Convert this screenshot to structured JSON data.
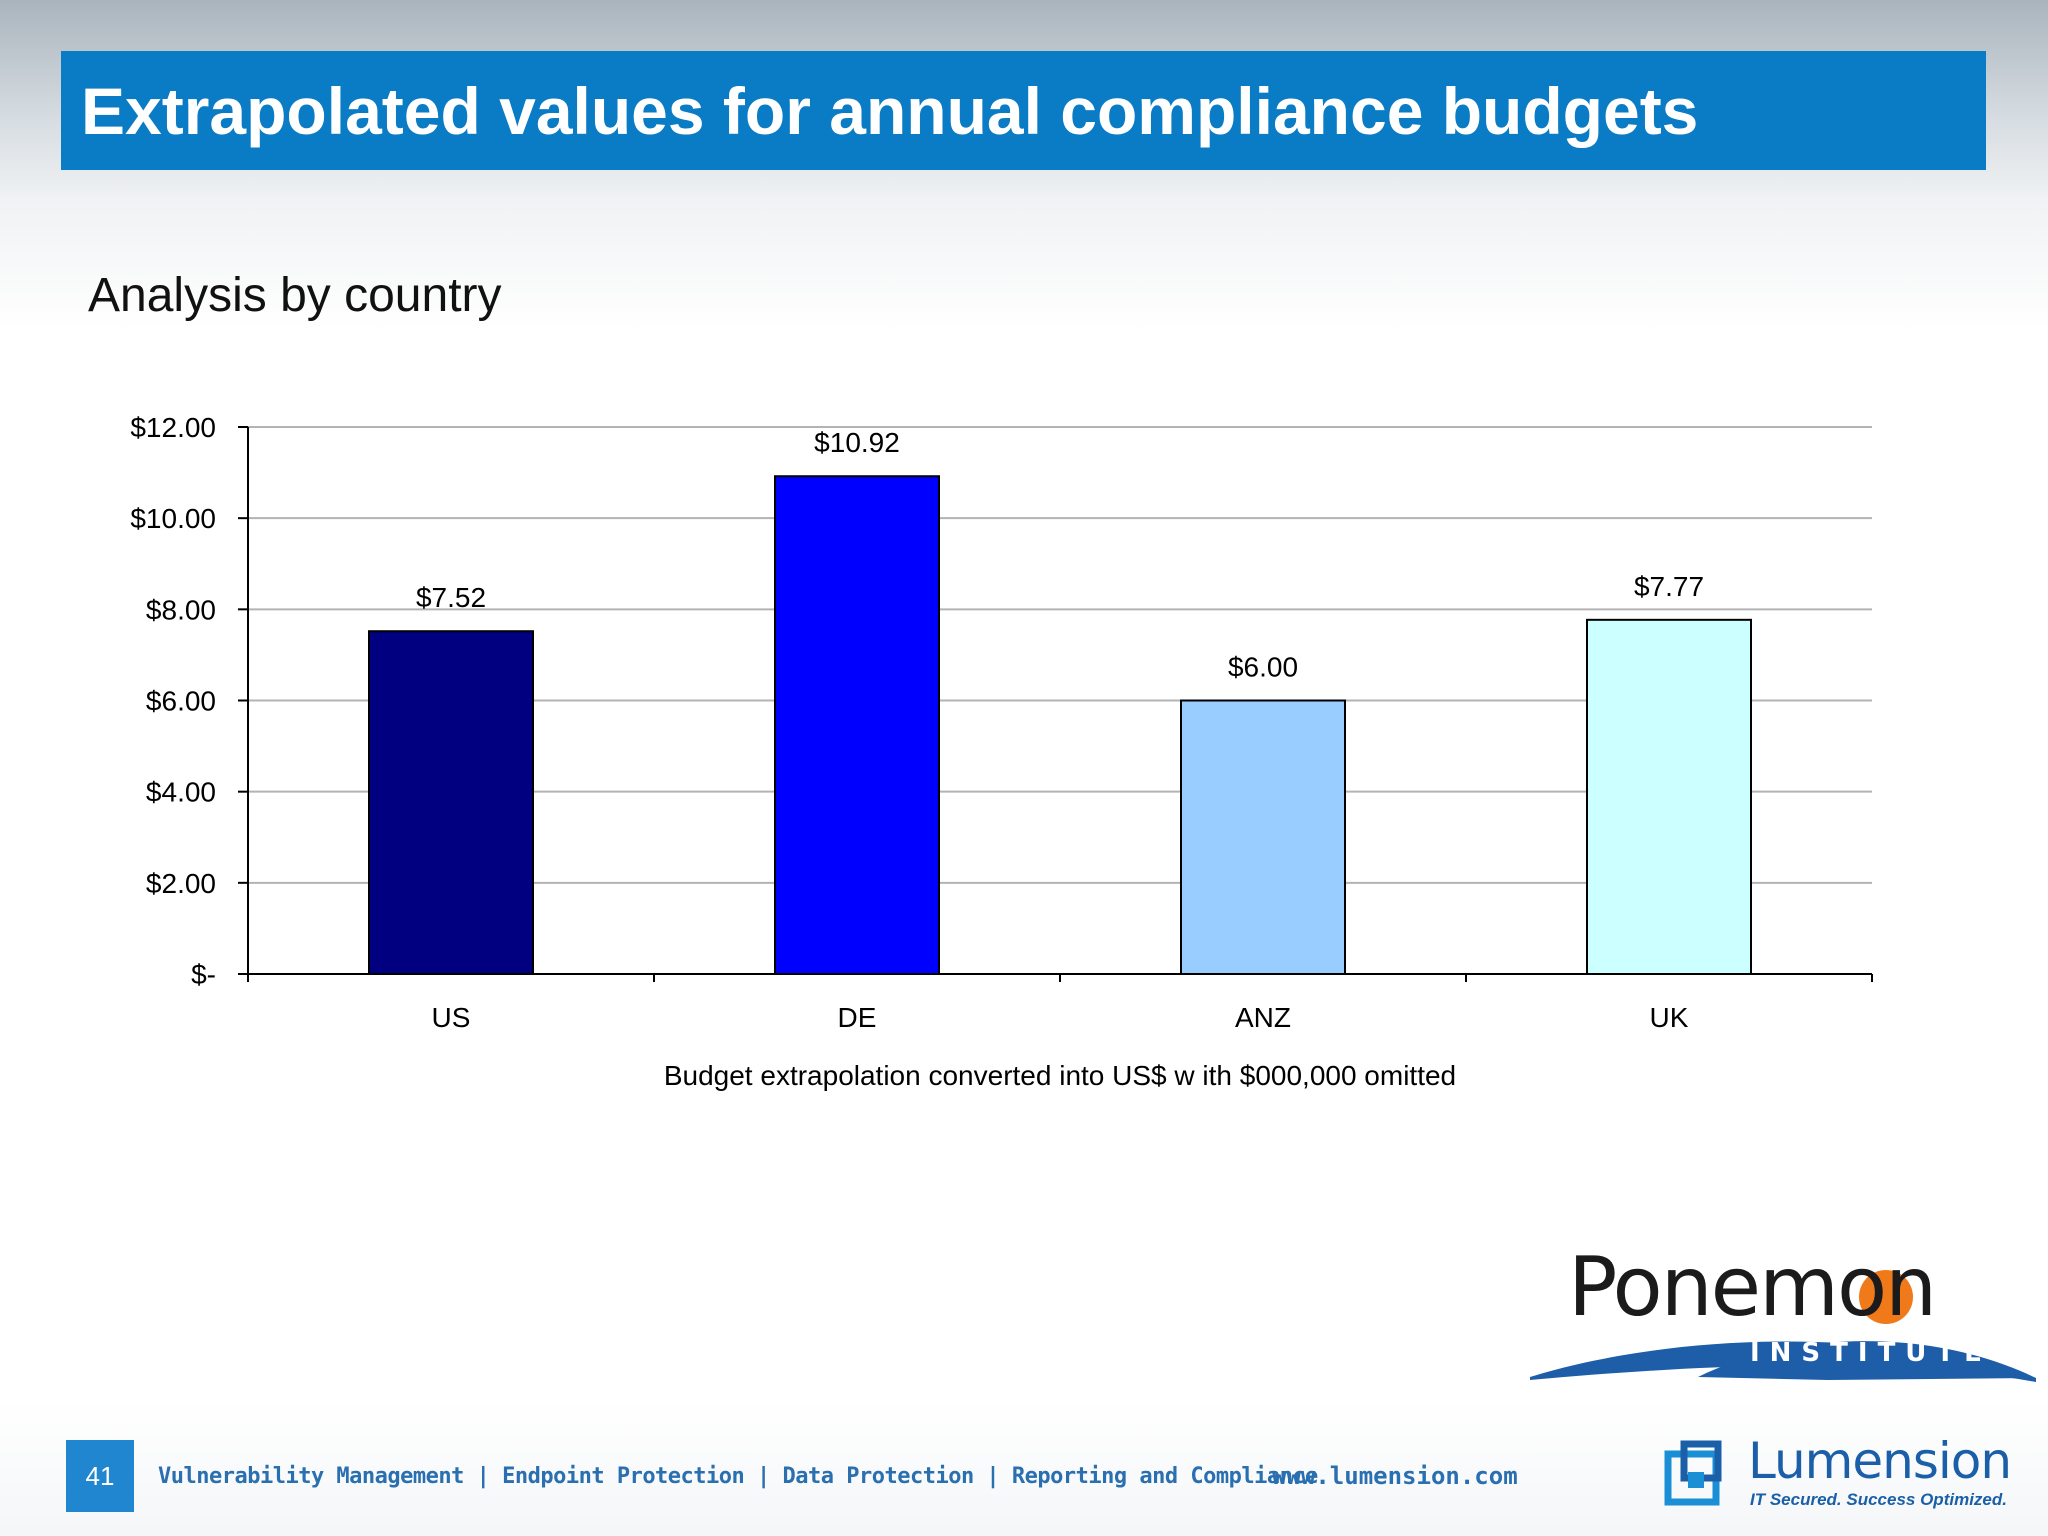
{
  "slide": {
    "title": "Extrapolated values for annual compliance budgets",
    "subtitle": "Analysis by country",
    "page_number": "41"
  },
  "chart_data": {
    "type": "bar",
    "title": "",
    "categories": [
      "US",
      "DE",
      "ANZ",
      "UK"
    ],
    "values": [
      7.52,
      10.92,
      6.0,
      7.77
    ],
    "data_labels": [
      "$7.52",
      "$10.92",
      "$6.00",
      "$7.77"
    ],
    "bar_colors": [
      "#000080",
      "#0000ff",
      "#99ccff",
      "#ccffff"
    ],
    "xlabel": "Budget extrapolation converted into US$ w ith $000,000 omitted",
    "ylabel": "",
    "ylim": [
      0,
      12
    ],
    "yticks": [
      0,
      2,
      4,
      6,
      8,
      10,
      12
    ],
    "ytick_labels": [
      "$-",
      "$2.00",
      "$4.00",
      "$6.00",
      "$8.00",
      "$10.00",
      "$12.00"
    ],
    "grid": true,
    "legend": "none"
  },
  "logos": {
    "ponemon": {
      "name": "Ponemon",
      "subtitle": "INSTITUTE"
    },
    "lumension": {
      "name": "Lumension",
      "tagline": "IT Secured. Success Optimized."
    }
  },
  "footer": {
    "tagline": "Vulnerability Management | Endpoint Protection | Data Protection | Reporting and Compliance",
    "url": "www.lumension.com"
  },
  "colors": {
    "title_bar": "#0a7bc5",
    "accent_blue": "#2a6fb0",
    "ponemon_orange": "#f07a1a",
    "ponemon_swoosh": "#1e5ea8"
  }
}
